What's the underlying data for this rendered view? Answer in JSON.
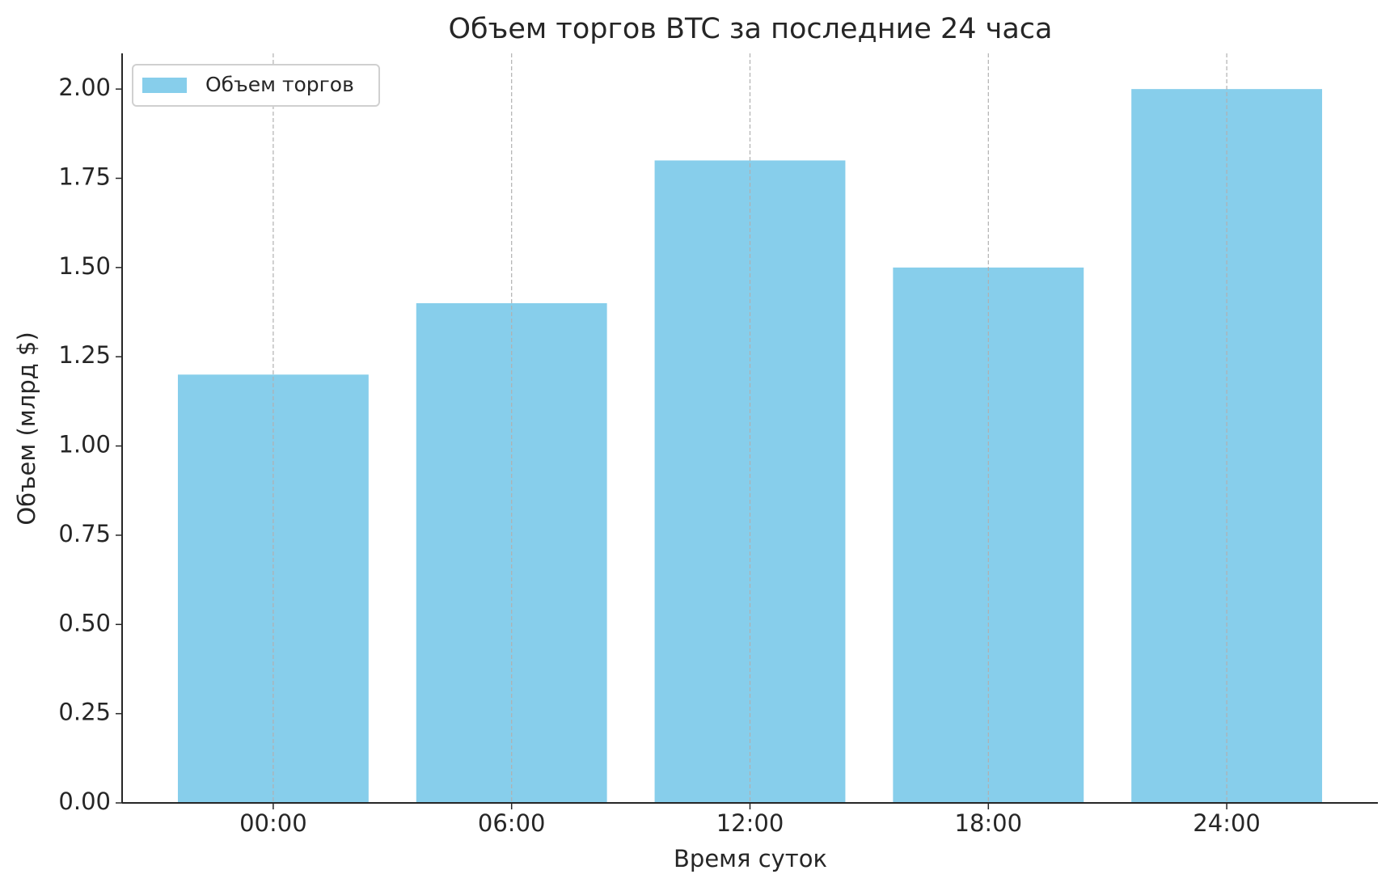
{
  "chart_data": {
    "type": "bar",
    "title": "Объем торгов BTC за последние 24 часа",
    "x_label": "Время суток",
    "y_label": "Объем (млрд $)",
    "categories": [
      "00:00",
      "06:00",
      "12:00",
      "18:00",
      "24:00"
    ],
    "series": [
      {
        "name": "Объем торгов",
        "color": "#87ceeb",
        "values": [
          1.2,
          1.4,
          1.8,
          1.5,
          2.0
        ]
      }
    ],
    "ylim": [
      0,
      2.1
    ],
    "yticks": [
      {
        "value": 0,
        "label": "0.00"
      },
      {
        "value": 0.25,
        "label": "0.25"
      },
      {
        "value": 0.5,
        "label": "0.50"
      },
      {
        "value": 0.75,
        "label": "0.75"
      },
      {
        "value": 1,
        "label": "1.00"
      },
      {
        "value": 1.25,
        "label": "1.25"
      },
      {
        "value": 1.5,
        "label": "1.50"
      },
      {
        "value": 1.75,
        "label": "1.75"
      },
      {
        "value": 2,
        "label": "2.00"
      }
    ],
    "grid": "x",
    "legend": "upper left"
  }
}
